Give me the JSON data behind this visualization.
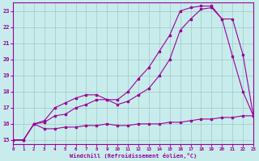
{
  "xlabel": "Windchill (Refroidissement éolien,°C)",
  "background_color": "#c8ecec",
  "grid_color": "#a0c8c8",
  "line_color": "#990099",
  "xlim": [
    0,
    23
  ],
  "ylim": [
    14.75,
    23.5
  ],
  "yticks": [
    15,
    16,
    17,
    18,
    19,
    20,
    21,
    22,
    23
  ],
  "xticks": [
    0,
    1,
    2,
    3,
    4,
    5,
    6,
    7,
    8,
    9,
    10,
    11,
    12,
    13,
    14,
    15,
    16,
    17,
    18,
    19,
    20,
    21,
    22,
    23
  ],
  "series1_x": [
    0,
    1,
    2,
    3,
    4,
    5,
    6,
    7,
    8,
    9,
    10,
    11,
    12,
    13,
    14,
    15,
    16,
    17,
    18,
    19,
    20,
    21,
    22,
    23
  ],
  "series1_y": [
    15.0,
    15.0,
    16.0,
    15.7,
    15.7,
    15.8,
    15.8,
    15.9,
    15.9,
    16.0,
    15.9,
    15.9,
    16.0,
    16.0,
    16.0,
    16.1,
    16.1,
    16.2,
    16.3,
    16.3,
    16.4,
    16.4,
    16.5,
    16.5
  ],
  "series2_x": [
    0,
    1,
    2,
    3,
    4,
    5,
    6,
    7,
    8,
    9,
    10,
    11,
    12,
    13,
    14,
    15,
    16,
    17,
    18,
    19,
    20,
    21,
    22,
    23
  ],
  "series2_y": [
    15.0,
    15.0,
    16.0,
    16.1,
    16.5,
    16.6,
    17.0,
    17.2,
    17.5,
    17.5,
    17.2,
    17.4,
    17.8,
    18.2,
    19.0,
    20.0,
    21.8,
    22.5,
    23.1,
    23.2,
    22.5,
    20.2,
    18.0,
    16.5
  ],
  "series3_x": [
    0,
    1,
    2,
    3,
    4,
    5,
    6,
    7,
    8,
    9,
    10,
    11,
    12,
    13,
    14,
    15,
    16,
    17,
    18,
    19,
    20,
    21,
    22,
    23
  ],
  "series3_y": [
    15.0,
    15.0,
    16.0,
    16.2,
    17.0,
    17.3,
    17.6,
    17.8,
    17.8,
    17.5,
    17.5,
    18.0,
    18.8,
    19.5,
    20.5,
    21.5,
    23.0,
    23.2,
    23.3,
    23.3,
    22.5,
    22.5,
    20.3,
    16.5
  ]
}
